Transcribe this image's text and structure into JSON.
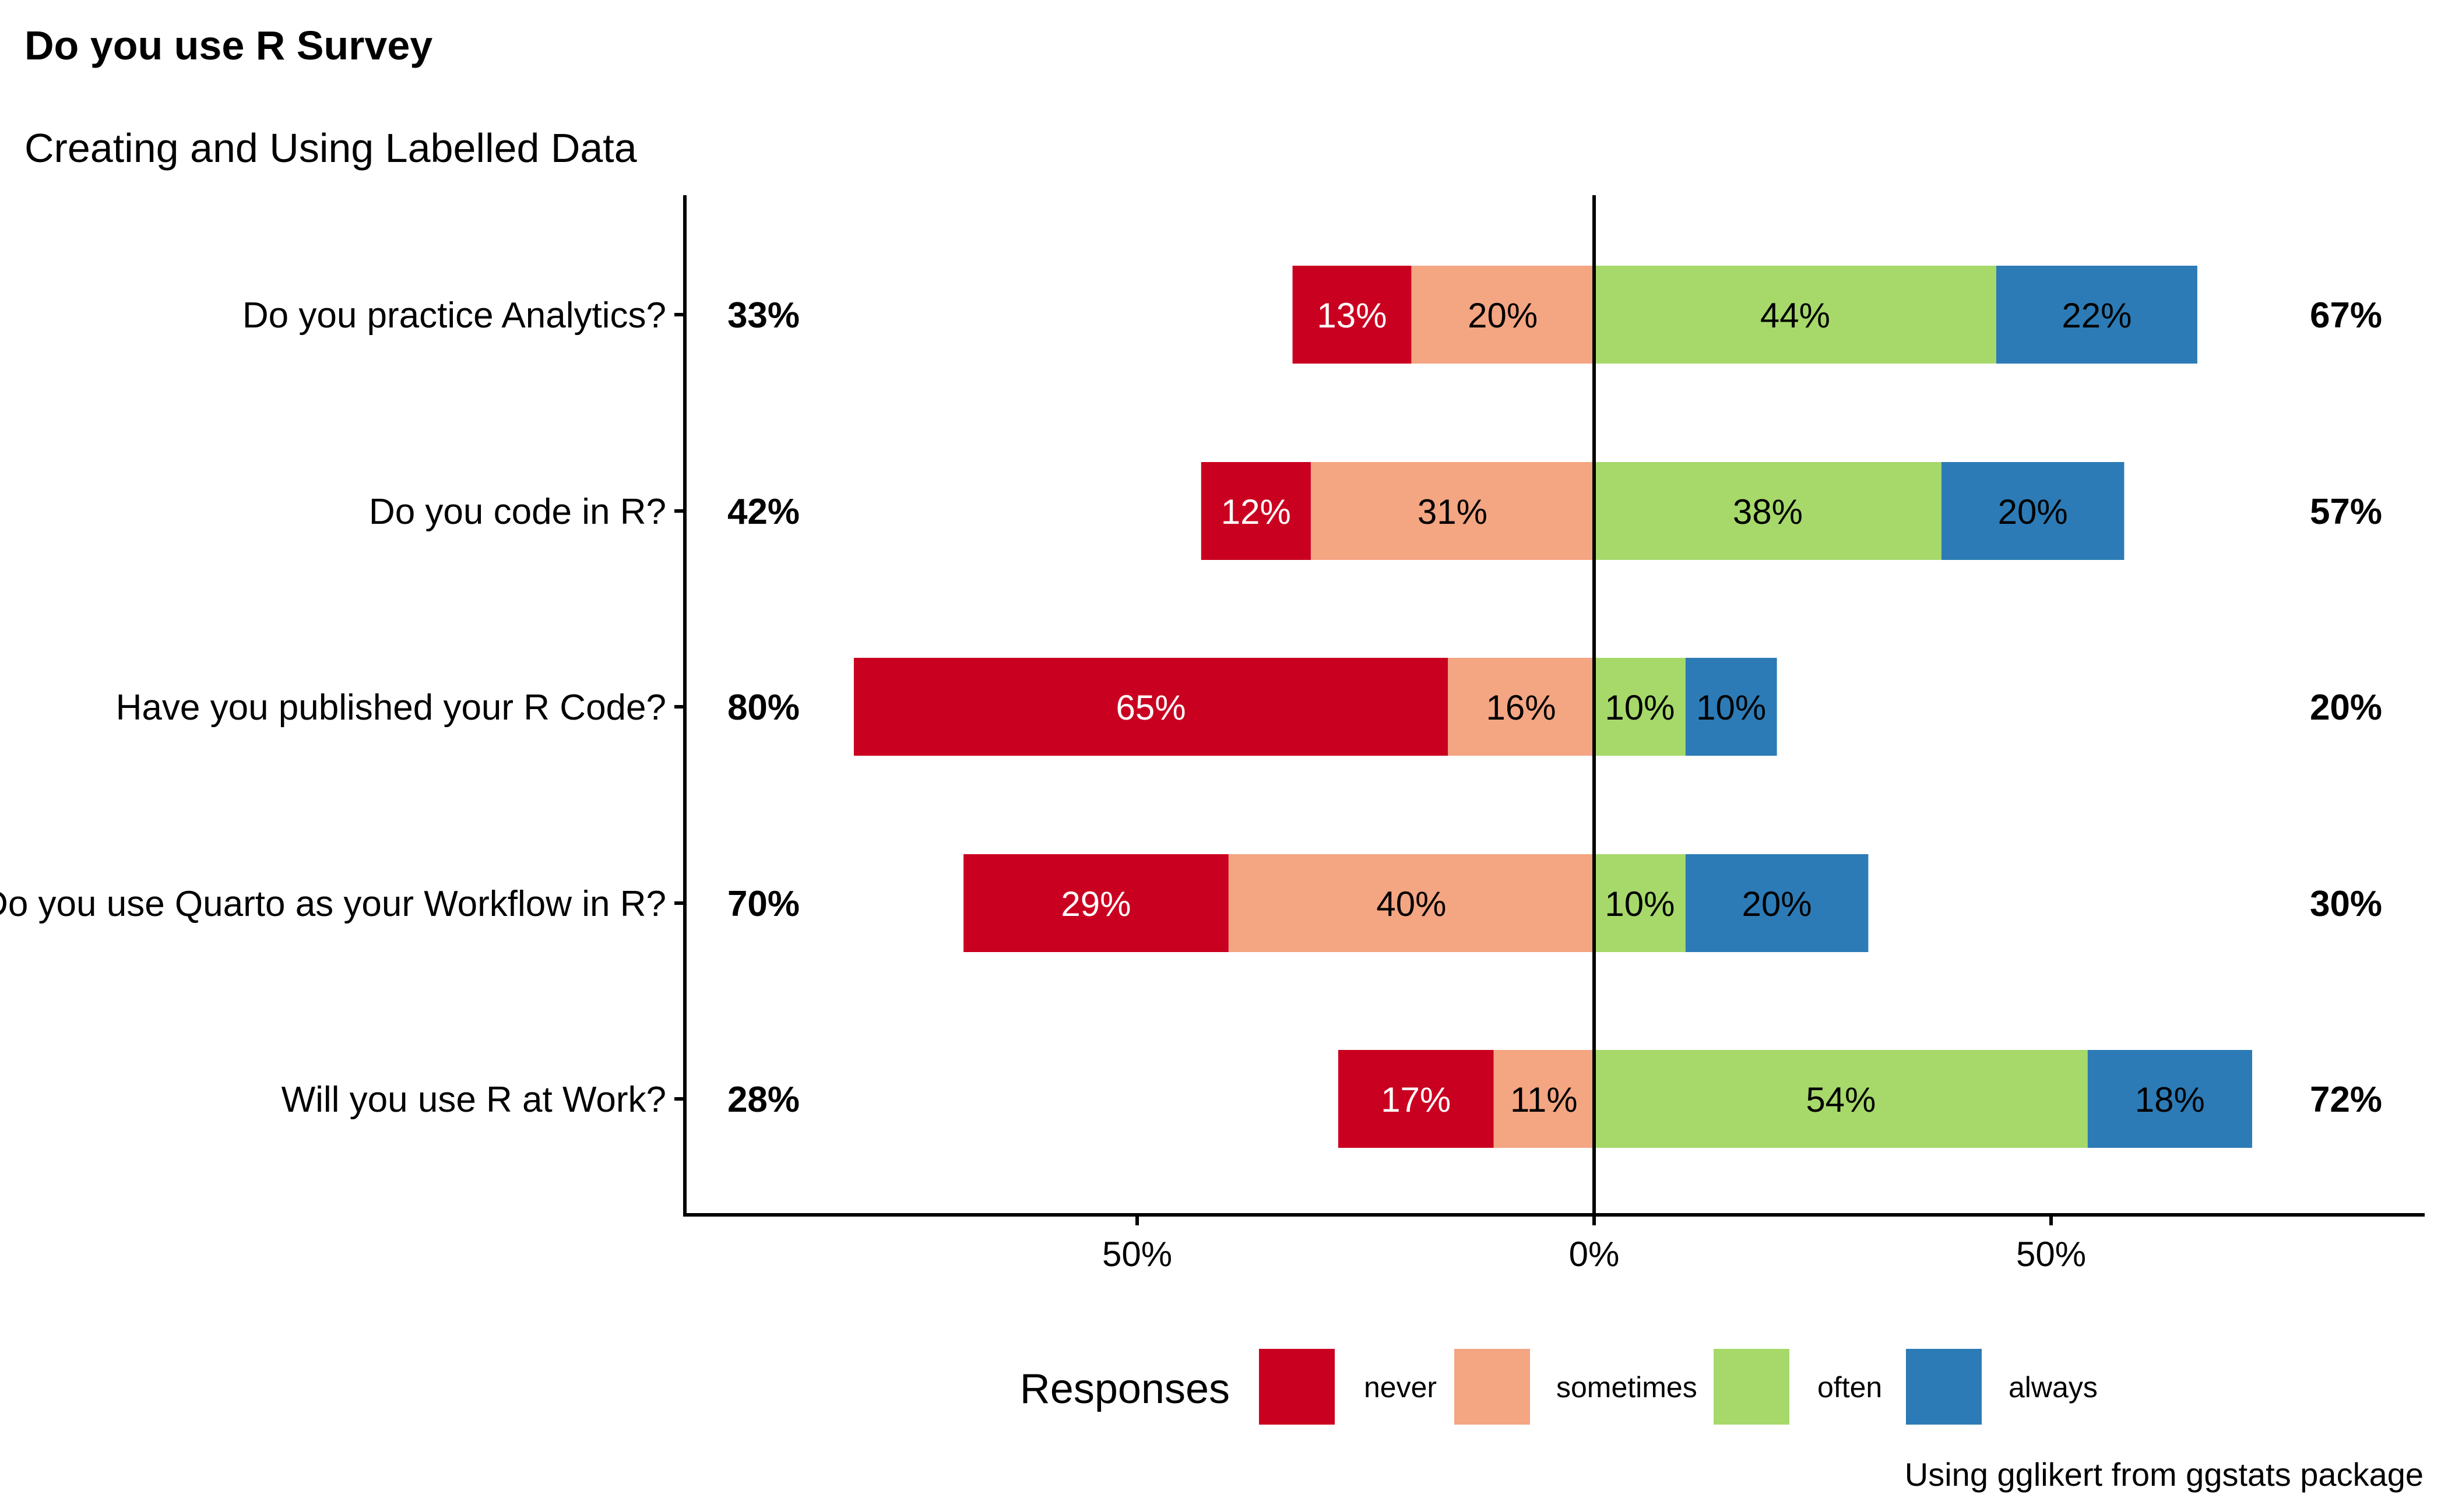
{
  "chart_data": {
    "type": "bar",
    "orientation": "horizontal",
    "stacked": "diverging",
    "title": "Do you use R Survey",
    "subtitle": "Creating and Using Labelled Data",
    "caption": "Using gglikert from ggstats package",
    "categories": [
      "Do you practice Analytics?",
      "Do you code in R?",
      "Have you published your R Code?",
      "Do you use Quarto as your Workflow in R?",
      "Will you use R at Work?"
    ],
    "series": [
      {
        "name": "never",
        "color": "#ca0020",
        "label_color": "#ffffff",
        "values": [
          13,
          12,
          65,
          29,
          17
        ],
        "labels": [
          "13%",
          "12%",
          "65%",
          "29%",
          "17%"
        ]
      },
      {
        "name": "sometimes",
        "color": "#f4a582",
        "label_color": "#000000",
        "values": [
          20,
          31,
          16,
          40,
          11
        ],
        "labels": [
          "20%",
          "31%",
          "16%",
          "40%",
          "11%"
        ]
      },
      {
        "name": "often",
        "color": "#a6d96a",
        "label_color": "#000000",
        "values": [
          44,
          38,
          10,
          10,
          54
        ],
        "labels": [
          "44%",
          "38%",
          "10%",
          "10%",
          "54%"
        ]
      },
      {
        "name": "always",
        "color": "#2c7bb6",
        "label_color": "#000000",
        "values": [
          22,
          20,
          10,
          20,
          18
        ],
        "labels": [
          "22%",
          "20%",
          "10%",
          "20%",
          "18%"
        ]
      }
    ],
    "negative_series": [
      "never",
      "sometimes"
    ],
    "positive_series": [
      "often",
      "always"
    ],
    "left_totals": [
      "33%",
      "42%",
      "80%",
      "70%",
      "28%"
    ],
    "right_totals": [
      "67%",
      "57%",
      "20%",
      "30%",
      "72%"
    ],
    "xlim": [
      -100,
      90
    ],
    "x_ticks": [
      -50,
      0,
      50
    ],
    "x_tick_labels": [
      "50%",
      "0%",
      "50%"
    ],
    "legend": {
      "title": "Responses",
      "position": "bottom"
    },
    "grid": false
  }
}
